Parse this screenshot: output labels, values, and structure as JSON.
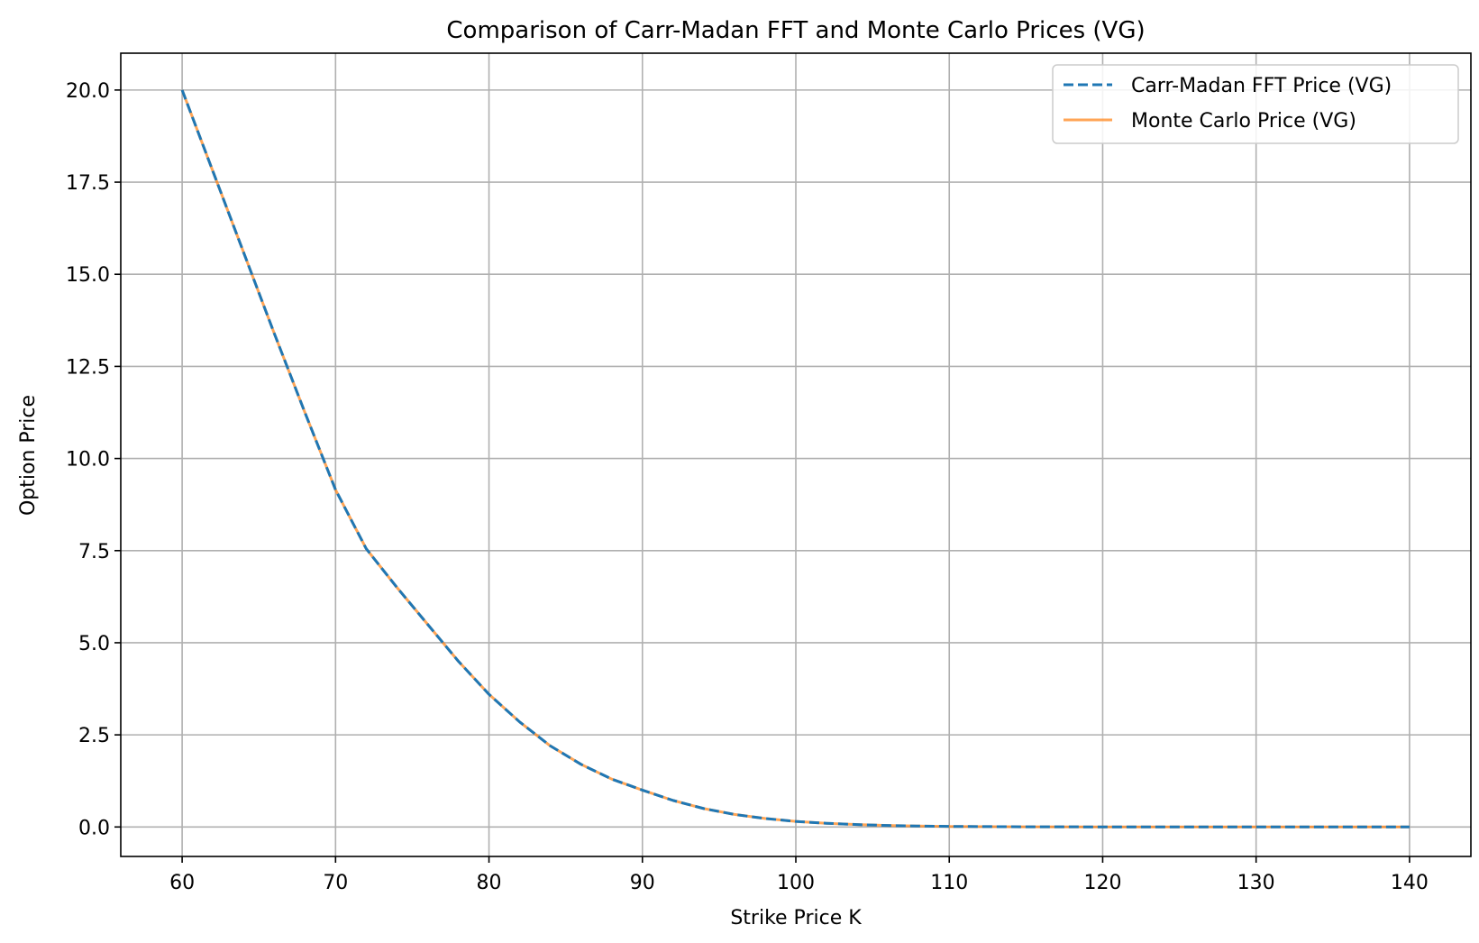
{
  "chart_data": {
    "type": "line",
    "title": "Comparison of Carr-Madan FFT and Monte Carlo Prices (VG)",
    "xlabel": "Strike Price K",
    "ylabel": "Option Price",
    "xlim": [
      56,
      144
    ],
    "ylim": [
      -0.8,
      21
    ],
    "xticks": [
      60,
      70,
      80,
      90,
      100,
      110,
      120,
      130,
      140
    ],
    "xtick_labels": [
      "60",
      "70",
      "80",
      "90",
      "100",
      "110",
      "120",
      "130",
      "140"
    ],
    "yticks": [
      0,
      2.5,
      5,
      7.5,
      10,
      12.5,
      15,
      17.5,
      20
    ],
    "ytick_labels": [
      "0.0",
      "2.5",
      "5.0",
      "7.5",
      "10.0",
      "12.5",
      "15.0",
      "17.5",
      "20.0"
    ],
    "grid": true,
    "legend_position": "top-right",
    "x": [
      60,
      62,
      64,
      66,
      68,
      70,
      72,
      74,
      76,
      78,
      80,
      82,
      84,
      86,
      88,
      90,
      92,
      94,
      96,
      98,
      100,
      102,
      104,
      106,
      108,
      110,
      115,
      120,
      125,
      130,
      135,
      140
    ],
    "series": [
      {
        "name": "Carr-Madan FFT Price (VG)",
        "color": "#1f77b4",
        "style": "dashed",
        "values": [
          20.0,
          17.8,
          15.6,
          13.4,
          11.25,
          9.15,
          7.55,
          6.5,
          5.5,
          4.5,
          3.6,
          2.85,
          2.2,
          1.7,
          1.3,
          1.0,
          0.72,
          0.5,
          0.34,
          0.23,
          0.15,
          0.1,
          0.065,
          0.04,
          0.025,
          0.015,
          0.005,
          0.002,
          0.001,
          0.0,
          0.0,
          0.0
        ]
      },
      {
        "name": "Monte Carlo Price (VG)",
        "color": "#ff7f0e",
        "style": "solid",
        "values": [
          20.0,
          17.8,
          15.6,
          13.4,
          11.25,
          9.15,
          7.55,
          6.5,
          5.5,
          4.5,
          3.6,
          2.85,
          2.2,
          1.7,
          1.3,
          1.0,
          0.72,
          0.5,
          0.34,
          0.23,
          0.15,
          0.1,
          0.065,
          0.04,
          0.025,
          0.015,
          0.005,
          0.002,
          0.001,
          0.0,
          0.0,
          0.0
        ]
      }
    ]
  }
}
